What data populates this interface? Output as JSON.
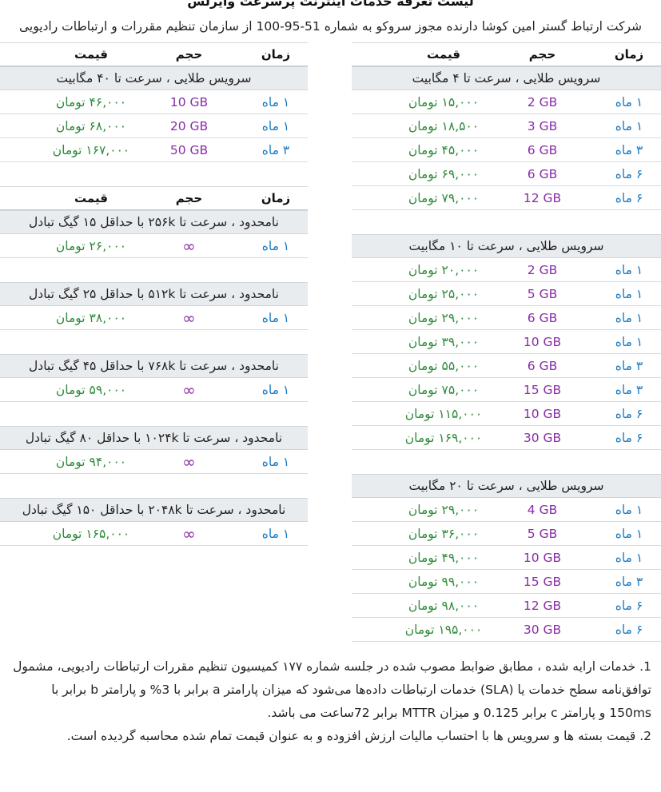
{
  "title": "لیست تعرفه خدمات اینترنت پرسرعت وایرلس",
  "subtitle": "شرکت ارتباط گستر امین کوشا دارنده مجوز سروکو به شماره 51-95-100 از سازمان تنظیم مقررات و ارتباطات رادیویی",
  "headers": {
    "time": "زمان",
    "volume": "حجم",
    "price": "قیمت"
  },
  "right_sections": [
    {
      "title": "سرویس طلایی ، سرعت تا ۴ مگابیت",
      "rows": [
        {
          "time": "۱ ماه",
          "volume": "2 GB",
          "price": "۱۵,۰۰۰ تومان"
        },
        {
          "time": "۱ ماه",
          "volume": "3 GB",
          "price": "۱۸,۵۰۰ تومان"
        },
        {
          "time": "۳ ماه",
          "volume": "6 GB",
          "price": "۴۵,۰۰۰ تومان"
        },
        {
          "time": "۶ ماه",
          "volume": "6 GB",
          "price": "۶۹,۰۰۰ تومان"
        },
        {
          "time": "۶ ماه",
          "volume": "12 GB",
          "price": "۷۹,۰۰۰ تومان"
        }
      ]
    },
    {
      "title": "سرویس طلایی ، سرعت تا ۱۰ مگابیت",
      "rows": [
        {
          "time": "۱ ماه",
          "volume": "2 GB",
          "price": "۲۰,۰۰۰ تومان"
        },
        {
          "time": "۱ ماه",
          "volume": "5 GB",
          "price": "۲۵,۰۰۰ تومان"
        },
        {
          "time": "۱ ماه",
          "volume": "6 GB",
          "price": "۲۹,۰۰۰ تومان"
        },
        {
          "time": "۱ ماه",
          "volume": "10 GB",
          "price": "۳۹,۰۰۰ تومان"
        },
        {
          "time": "۳ ماه",
          "volume": "6 GB",
          "price": "۵۵,۰۰۰ تومان"
        },
        {
          "time": "۳ ماه",
          "volume": "15 GB",
          "price": "۷۵,۰۰۰ تومان"
        },
        {
          "time": "۶ ماه",
          "volume": "10 GB",
          "price": "۱۱۵,۰۰۰ تومان"
        },
        {
          "time": "۶ ماه",
          "volume": "30 GB",
          "price": "۱۶۹,۰۰۰ تومان"
        }
      ]
    },
    {
      "title": "سرویس طلایی ، سرعت تا ۲۰ مگابیت",
      "rows": [
        {
          "time": "۱ ماه",
          "volume": "4 GB",
          "price": "۲۹,۰۰۰ تومان"
        },
        {
          "time": "۱ ماه",
          "volume": "5 GB",
          "price": "۳۶,۰۰۰ تومان"
        },
        {
          "time": "۱ ماه",
          "volume": "10 GB",
          "price": "۴۹,۰۰۰ تومان"
        },
        {
          "time": "۳ ماه",
          "volume": "15 GB",
          "price": "۹۹,۰۰۰ تومان"
        },
        {
          "time": "۶ ماه",
          "volume": "12 GB",
          "price": "۹۸,۰۰۰ تومان"
        },
        {
          "time": "۶ ماه",
          "volume": "30 GB",
          "price": "۱۹۵,۰۰۰ تومان"
        }
      ]
    }
  ],
  "left_top_section": {
    "title": "سرویس طلایی ، سرعت تا ۴۰ مگابیت",
    "rows": [
      {
        "time": "۱ ماه",
        "volume": "10 GB",
        "price": "۴۶,۰۰۰ تومان"
      },
      {
        "time": "۱ ماه",
        "volume": "20 GB",
        "price": "۶۸,۰۰۰ تومان"
      },
      {
        "time": "۳ ماه",
        "volume": "50 GB",
        "price": "۱۶۷,۰۰۰ تومان"
      }
    ]
  },
  "left_unlimited_sections": [
    {
      "title": "نامحدود ، سرعت تا ۲۵۶k با حداقل ۱۵ گیگ تبادل",
      "rows": [
        {
          "time": "۱ ماه",
          "volume": "∞",
          "price": "۲۶,۰۰۰ تومان"
        }
      ]
    },
    {
      "title": "نامحدود ، سرعت تا ۵۱۲k با حداقل ۲۵ گیگ تبادل",
      "rows": [
        {
          "time": "۱ ماه",
          "volume": "∞",
          "price": "۳۸,۰۰۰ تومان"
        }
      ]
    },
    {
      "title": "نامحدود ، سرعت تا ۷۶۸k با حداقل ۴۵ گیگ تبادل",
      "rows": [
        {
          "time": "۱ ماه",
          "volume": "∞",
          "price": "۵۹,۰۰۰ تومان"
        }
      ]
    },
    {
      "title": "نامحدود ، سرعت تا ۱۰۲۴k با حداقل ۸۰ گیگ تبادل",
      "rows": [
        {
          "time": "۱ ماه",
          "volume": "∞",
          "price": "۹۴,۰۰۰ تومان"
        }
      ]
    },
    {
      "title": "نامحدود ، سرعت تا ۲۰۴۸k با حداقل ۱۵۰ گیگ تبادل",
      "rows": [
        {
          "time": "۱ ماه",
          "volume": "∞",
          "price": "۱۶۵,۰۰۰ تومان"
        }
      ]
    }
  ],
  "notes": [
    "1. خدمات ارایه شده ، مطابق ضوابط مصوب شده در جلسه شماره ۱۷۷ کمیسیون تنظیم مقررات ارتباطات رادیویی، مشمول توافق‌نامه سطح خدمات یا (SLA) خدمات ارتباطات داده‌ها می‌شود که میزان پارامتر a برابر با 3% و پارامتر b برابر با 150ms و پارامتر c برابر 0.125 و میزان MTTR برابر 72ساعت می باشد.",
    "2. قیمت بسته ها و سرویس ها با احتساب مالیات ارزش افزوده و به عنوان قیمت تمام شده محاسبه گردیده است."
  ],
  "colors": {
    "time": "#1a7bc4",
    "volume": "#8b2ca8",
    "price": "#2e8b3a",
    "section_bg": "#e9ecef"
  }
}
